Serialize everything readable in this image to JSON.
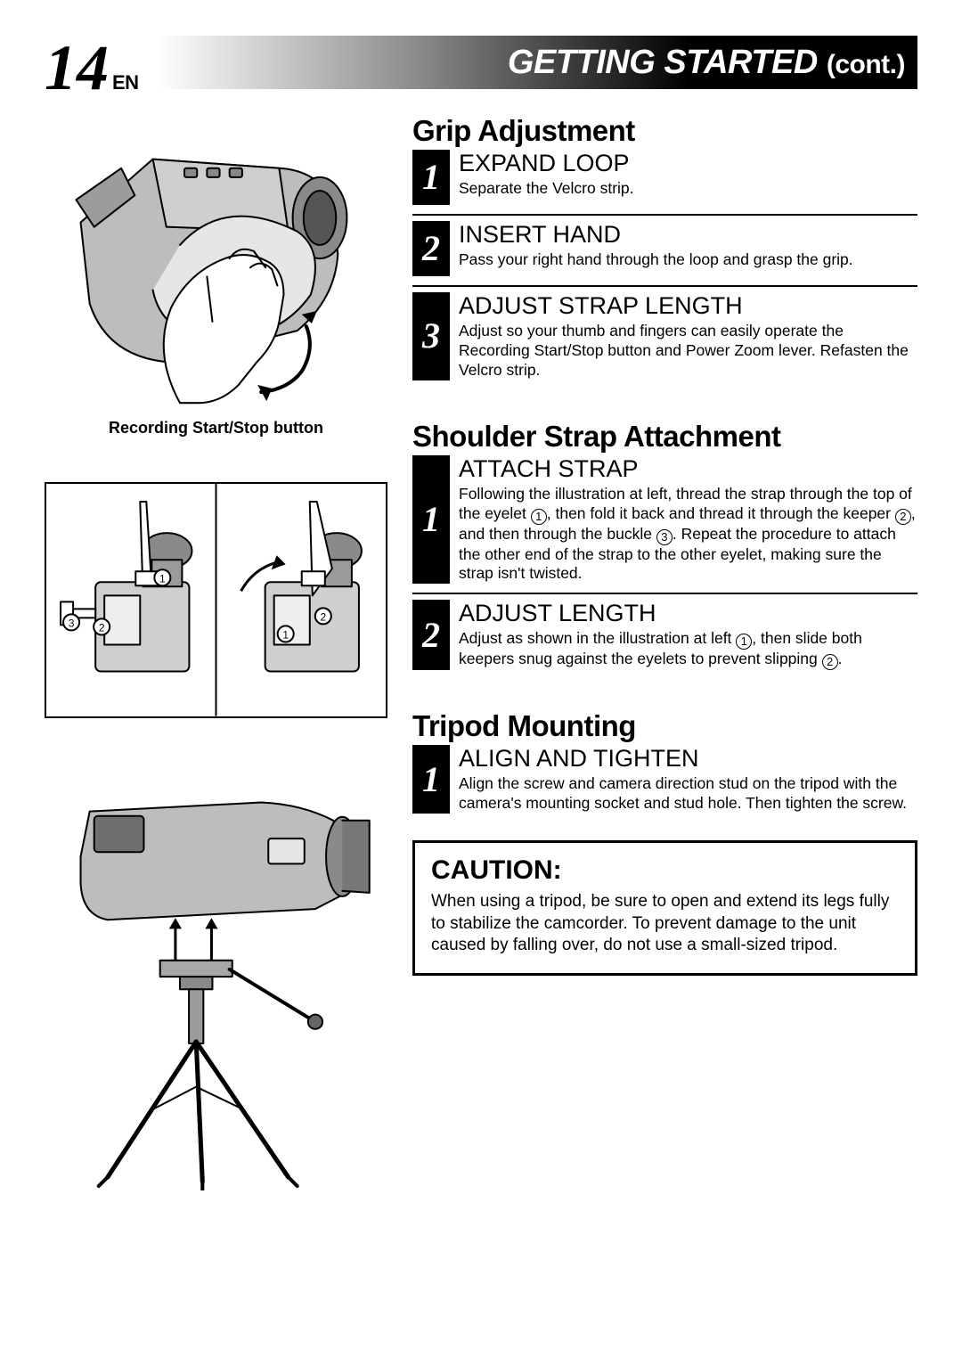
{
  "page_number": "14",
  "page_lang": "EN",
  "header_title_main": "GETTING STARTED",
  "header_title_cont": "(cont.)",
  "illus1_caption": "Recording Start/Stop button",
  "sections": {
    "grip": {
      "title": "Grip Adjustment",
      "steps": [
        {
          "num": "1",
          "head": "EXPAND LOOP",
          "text": "Separate the Velcro strip."
        },
        {
          "num": "2",
          "head": "INSERT HAND",
          "text": "Pass your right hand through the loop and grasp the grip."
        },
        {
          "num": "3",
          "head": "ADJUST STRAP LENGTH",
          "text": "Adjust so your thumb and fingers can easily operate the Recording Start/Stop button and Power Zoom lever. Refasten the Velcro strip."
        }
      ]
    },
    "shoulder": {
      "title": "Shoulder Strap Attachment",
      "steps": [
        {
          "num": "1",
          "head": "ATTACH STRAP",
          "text_html": "Following the illustration at left, thread the strap through the top of the eyelet <span class='circled'>1</span>, then fold it back and thread it through the keeper <span class='circled'>2</span>, and then through the buckle <span class='circled'>3</span>. Repeat the procedure to attach the other end of the strap to the other eyelet, making sure the strap isn't twisted."
        },
        {
          "num": "2",
          "head": "ADJUST LENGTH",
          "text_html": "Adjust as shown in the illustration at left <span class='circled'>1</span>, then slide both keepers snug against the eyelets to prevent slipping <span class='circled'>2</span>."
        }
      ]
    },
    "tripod": {
      "title": "Tripod Mounting",
      "steps": [
        {
          "num": "1",
          "head": "ALIGN AND TIGHTEN",
          "text": "Align the screw and camera direction stud on the tripod with the camera's mounting socket and stud hole. Then tighten the screw."
        }
      ]
    }
  },
  "caution": {
    "head": "CAUTION:",
    "text": "When using a tripod, be sure to open and extend its legs fully to stabilize the camcorder. To prevent damage to the unit caused by falling over, do not use a small-sized tripod."
  },
  "colors": {
    "black": "#000000",
    "white": "#ffffff",
    "cam_body": "#bdbdbd",
    "cam_dark": "#6b6b6b"
  }
}
